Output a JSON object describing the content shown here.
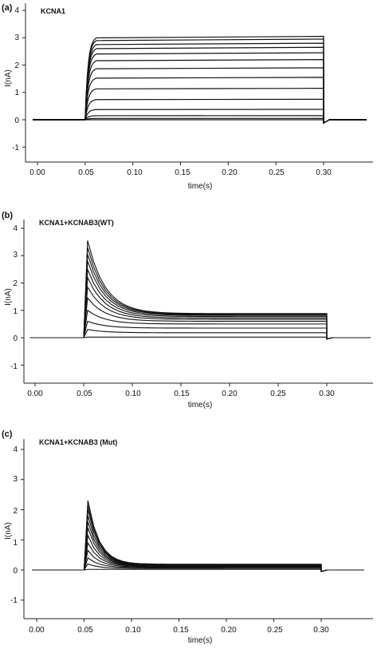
{
  "chart_data": [
    {
      "type": "line",
      "panel_label": "(a)",
      "title": "KCNA1",
      "xlabel": "time(s)",
      "ylabel": "I(nA)",
      "xlim": [
        -0.005,
        0.345
      ],
      "ylim": [
        -1.4,
        4.3
      ],
      "xticks": [
        "0.00",
        "0.05",
        "0.10",
        "0.15",
        "0.20",
        "0.25",
        "0.30"
      ],
      "yticks": [
        "-1",
        "0",
        "1",
        "2",
        "3",
        "4"
      ],
      "grid": false,
      "pulse": {
        "start": 0.05,
        "end": 0.3
      },
      "kinetics": "non-inactivating",
      "steady_values": [
        0.0,
        0.05,
        0.15,
        0.38,
        0.75,
        1.15,
        1.55,
        1.9,
        2.2,
        2.45,
        2.65,
        2.8,
        2.95,
        3.05
      ]
    },
    {
      "type": "line",
      "panel_label": "(b)",
      "title": "KCNA1+KCNAB3(WT)",
      "xlabel": "time(s)",
      "ylabel": "I(nA)",
      "xlim": [
        -0.005,
        0.345
      ],
      "ylim": [
        -1.4,
        4.3
      ],
      "xticks": [
        "0.00",
        "0.05",
        "0.10",
        "0.15",
        "0.20",
        "0.25",
        "0.30"
      ],
      "yticks": [
        "-1",
        "0",
        "1",
        "2",
        "3",
        "4"
      ],
      "grid": false,
      "pulse": {
        "start": 0.05,
        "end": 0.3
      },
      "kinetics": "inactivating",
      "peak_values": [
        0.02,
        0.3,
        0.6,
        1.0,
        1.45,
        1.85,
        2.2,
        2.5,
        2.8,
        3.05,
        3.3,
        3.55
      ],
      "end_values": [
        0.02,
        0.18,
        0.35,
        0.5,
        0.6,
        0.67,
        0.72,
        0.77,
        0.81,
        0.84,
        0.86,
        0.88
      ]
    },
    {
      "type": "line",
      "panel_label": "(c)",
      "title": "KCNA1+KCNAB3 (Mut)",
      "xlabel": "time(s)",
      "ylabel": "I(nA)",
      "xlim": [
        -0.005,
        0.345
      ],
      "ylim": [
        -1.4,
        4.3
      ],
      "xticks": [
        "0.00",
        "0.05",
        "0.10",
        "0.15",
        "0.20",
        "0.25",
        "0.30"
      ],
      "yticks": [
        "-1",
        "0",
        "1",
        "2",
        "3",
        "4"
      ],
      "grid": false,
      "pulse": {
        "start": 0.05,
        "end": 0.3
      },
      "kinetics": "inactivating",
      "peak_values": [
        0.02,
        0.2,
        0.4,
        0.65,
        0.9,
        1.15,
        1.4,
        1.6,
        1.8,
        2.0,
        2.15,
        2.3
      ],
      "end_values": [
        0.02,
        0.05,
        0.08,
        0.1,
        0.12,
        0.13,
        0.14,
        0.15,
        0.16,
        0.17,
        0.18,
        0.19
      ]
    }
  ]
}
